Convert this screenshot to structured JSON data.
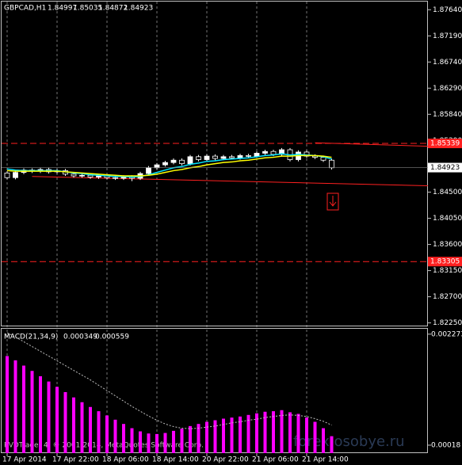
{
  "chart_data": [
    {
      "type": "candlestick",
      "title": "GBPCAD,H1",
      "header_values": [
        "1.84997",
        "1.85035",
        "1.84872",
        "1.84923"
      ],
      "x": [
        "17 Apr 2014",
        null,
        null,
        null,
        null,
        null,
        "17 Apr 22:00",
        null,
        null,
        null,
        null,
        null,
        "18 Apr 06:00",
        null,
        null,
        null,
        null,
        null,
        "18 Apr 14:00",
        null,
        null,
        null,
        null,
        null,
        "20 Apr 22:00",
        null,
        null,
        null,
        null,
        null,
        "21 Apr 06:00",
        null,
        null,
        null,
        null,
        null,
        "21 Apr 14:00",
        null,
        null,
        null
      ],
      "open": [
        1.8483,
        1.8475,
        1.8484,
        1.8488,
        1.8486,
        1.8489,
        1.8485,
        1.8487,
        1.8481,
        1.8478,
        1.8479,
        1.8476,
        1.8478,
        1.8475,
        1.8474,
        1.8476,
        1.8474,
        1.8482,
        1.8492,
        1.8497,
        1.8501,
        1.8505,
        1.8499,
        1.8511,
        1.8506,
        1.8512,
        1.8508,
        1.8511,
        1.8509,
        1.8513,
        1.8512,
        1.8517,
        1.852,
        1.8515,
        1.8523,
        1.8506,
        1.8519,
        1.8512,
        1.851,
        1.8505
      ],
      "high": [
        1.8486,
        1.8487,
        1.8491,
        1.8491,
        1.8492,
        1.8492,
        1.849,
        1.849,
        1.8484,
        1.8482,
        1.8482,
        1.8481,
        1.8481,
        1.8478,
        1.8479,
        1.8479,
        1.8485,
        1.8495,
        1.85,
        1.8504,
        1.8508,
        1.8508,
        1.8514,
        1.8514,
        1.8515,
        1.8515,
        1.8514,
        1.8514,
        1.8516,
        1.8516,
        1.852,
        1.8523,
        1.8523,
        1.8526,
        1.8526,
        1.8522,
        1.8522,
        1.8515,
        1.8513,
        1.8508
      ],
      "low": [
        1.8472,
        1.8472,
        1.8481,
        1.8483,
        1.8483,
        1.8482,
        1.8482,
        1.8478,
        1.8475,
        1.8475,
        1.8473,
        1.8473,
        1.8472,
        1.8471,
        1.8471,
        1.8469,
        1.8471,
        1.8479,
        1.8489,
        1.8494,
        1.8498,
        1.8496,
        1.8496,
        1.8503,
        1.8503,
        1.8505,
        1.8505,
        1.8506,
        1.8506,
        1.8509,
        1.8509,
        1.8514,
        1.8512,
        1.8512,
        1.8503,
        1.8503,
        1.8509,
        1.8507,
        1.8502,
        1.8489
      ],
      "close": [
        1.8475,
        1.8484,
        1.8488,
        1.8486,
        1.8489,
        1.8485,
        1.8487,
        1.8481,
        1.8478,
        1.8479,
        1.8476,
        1.8478,
        1.8475,
        1.8474,
        1.8476,
        1.8474,
        1.8482,
        1.8492,
        1.8497,
        1.8501,
        1.8505,
        1.8499,
        1.8511,
        1.8506,
        1.8512,
        1.8508,
        1.8511,
        1.8509,
        1.8513,
        1.8512,
        1.8517,
        1.852,
        1.8515,
        1.8523,
        1.8506,
        1.8519,
        1.8512,
        1.851,
        1.8505,
        1.8492
      ],
      "up_color": "#ffffff",
      "down_color": "#000000",
      "series": [
        {
          "color": "#00e5ff",
          "values": [
            1.849,
            1.8488,
            1.8487,
            1.8487,
            1.8487,
            1.8487,
            1.8487,
            1.8485,
            1.8483,
            1.8482,
            1.848,
            1.8479,
            1.8478,
            1.8477,
            1.8477,
            1.8476,
            1.8477,
            1.848,
            1.8484,
            1.8488,
            1.8492,
            1.8494,
            1.8498,
            1.85,
            1.8503,
            1.8504,
            1.8506,
            1.8507,
            1.8508,
            1.8509,
            1.8511,
            1.8513,
            1.8514,
            1.8516,
            1.8514,
            1.8515,
            1.8514,
            1.8513,
            1.8511,
            1.8507
          ]
        },
        {
          "color": "#ffff00",
          "values": [
            1.8487,
            1.8486,
            1.8486,
            1.8486,
            1.8486,
            1.8486,
            1.8486,
            1.8485,
            1.8484,
            1.8483,
            1.8482,
            1.8481,
            1.848,
            1.8479,
            1.8478,
            1.8478,
            1.8478,
            1.8479,
            1.8481,
            1.8484,
            1.8487,
            1.8489,
            1.8492,
            1.8494,
            1.8497,
            1.8499,
            1.8501,
            1.8502,
            1.8504,
            1.8505,
            1.8507,
            1.8509,
            1.851,
            1.8512,
            1.8512,
            1.8513,
            1.8513,
            1.8513,
            1.8512,
            1.851
          ]
        }
      ],
      "levels": [
        {
          "value": 1.85339,
          "label": "1.85339"
        },
        {
          "value": 1.83305,
          "label": "1.83305"
        }
      ],
      "trendlines": [
        {
          "from": [
            3,
            1.8477
          ],
          "to": [
            51,
            1.8461
          ]
        },
        {
          "from": [
            37,
            1.8535
          ],
          "to": [
            51,
            1.8529
          ]
        }
      ],
      "current_price": {
        "value": 1.84923,
        "label": "1.84923"
      },
      "ylim": [
        1.8219,
        1.8778
      ],
      "yticks": [
        {
          "value": 1.8764,
          "label": "1.87640"
        },
        {
          "value": 1.8719,
          "label": "1.87190"
        },
        {
          "value": 1.8674,
          "label": "1.86740"
        },
        {
          "value": 1.8629,
          "label": "1.86290"
        },
        {
          "value": 1.8584,
          "label": "1.85840"
        },
        {
          "value": 1.8539,
          "label": "1.85390"
        },
        {
          "value": 1.845,
          "label": "1.84500"
        },
        {
          "value": 1.8405,
          "label": "1.84050"
        },
        {
          "value": 1.836,
          "label": "1.83600"
        },
        {
          "value": 1.8315,
          "label": "1.83150"
        },
        {
          "value": 1.827,
          "label": "1.82700"
        },
        {
          "value": 1.8225,
          "label": "1.82250"
        }
      ],
      "grid": true
    },
    {
      "type": "macd",
      "title": "MACD(21,34,9)",
      "header_values": [
        "0.000349",
        "0.000559"
      ],
      "values": [
        0.00186,
        0.00178,
        0.00168,
        0.00158,
        0.00148,
        0.00138,
        0.00128,
        0.00118,
        0.00108,
        0.00099,
        0.0009,
        0.00082,
        0.00074,
        0.00066,
        0.00058,
        0.0005,
        0.00044,
        0.0004,
        0.00039,
        0.00041,
        0.00045,
        0.00049,
        0.00054,
        0.00058,
        0.00062,
        0.00065,
        0.00068,
        0.0007,
        0.00072,
        0.00075,
        0.00078,
        0.00081,
        0.00082,
        0.00084,
        0.0008,
        0.00077,
        0.0007,
        0.00062,
        0.0005,
        0.000349
      ],
      "color": "#ff00ff",
      "signal": [
        0.0023,
        0.00222,
        0.00213,
        0.00204,
        0.00195,
        0.00186,
        0.00177,
        0.00168,
        0.00159,
        0.0015,
        0.00141,
        0.00131,
        0.00121,
        0.00111,
        0.00101,
        0.00091,
        0.00082,
        0.00073,
        0.00065,
        0.00058,
        0.00053,
        0.0005,
        0.00049,
        0.0005,
        0.00052,
        0.00054,
        0.00057,
        0.0006,
        0.00062,
        0.00065,
        0.00067,
        0.0007,
        0.00072,
        0.00074,
        0.00075,
        0.00074,
        0.00072,
        0.00068,
        0.00063,
        0.000559
      ],
      "signal_color": "#c0c0c0",
      "ylim": [
        3e-05,
        0.00236
      ],
      "yticks": [
        {
          "value": 0.002273,
          "label": "0.002273"
        },
        {
          "value": 0.00018,
          "label": "0.00018"
        }
      ]
    }
  ],
  "copyright": "RVDTrader 4, © 2001-2014, MetaQuotes Software Corp.",
  "watermark": "forex.osobye.ru"
}
